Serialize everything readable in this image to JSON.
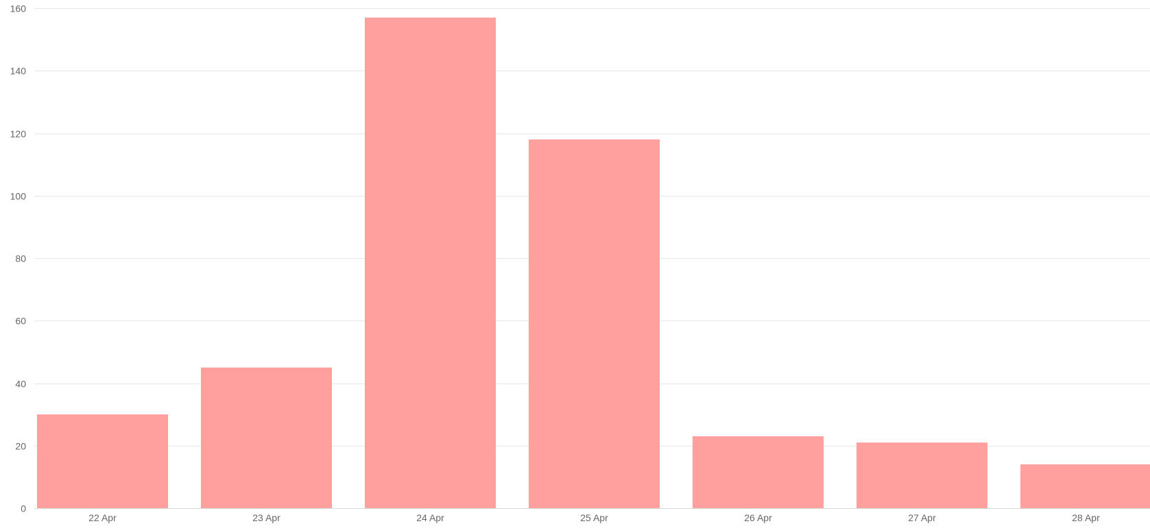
{
  "chart_data": {
    "type": "bar",
    "title": "",
    "xlabel": "",
    "ylabel": "",
    "categories": [
      "22 Apr",
      "23 Apr",
      "24 Apr",
      "25 Apr",
      "26 Apr",
      "27 Apr",
      "28 Apr"
    ],
    "values": [
      30,
      45,
      157,
      118,
      23,
      21,
      14
    ],
    "ylim": [
      0,
      160
    ],
    "yticks": [
      "0",
      "20",
      "40",
      "60",
      "80",
      "100",
      "120",
      "140",
      "160"
    ],
    "grid": true,
    "bar_color": "#ff9f9e"
  }
}
